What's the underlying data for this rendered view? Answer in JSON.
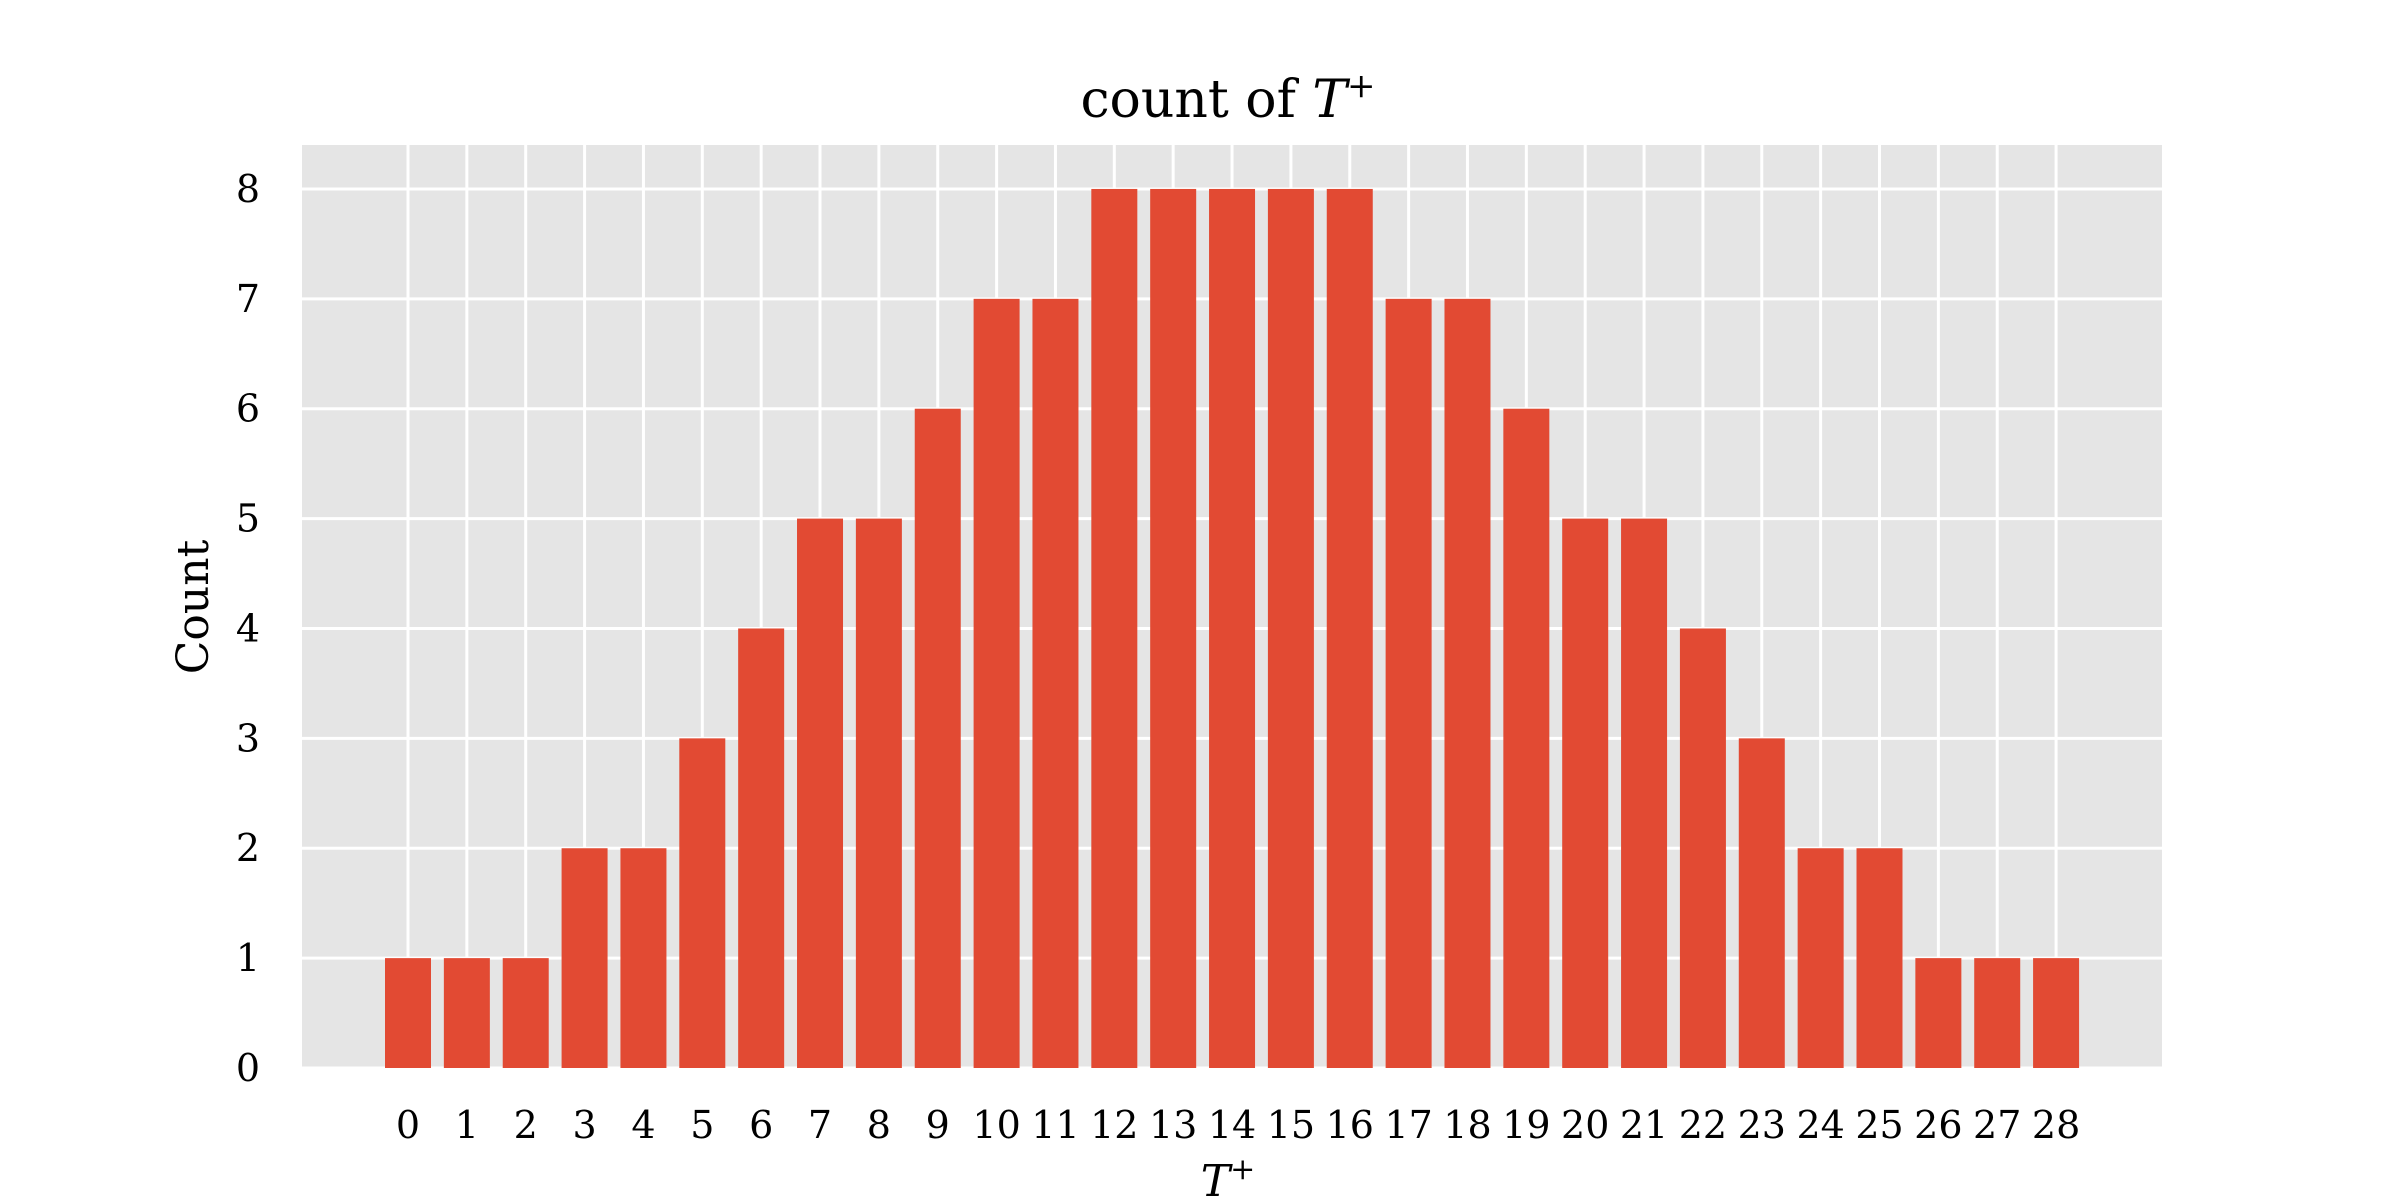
{
  "chart_data": {
    "type": "bar",
    "title": "count of T⁺",
    "title_parts": {
      "prefix": "count of ",
      "symbol": "T",
      "superscript": "+"
    },
    "xlabel": "T⁺",
    "xlabel_parts": {
      "symbol": "T",
      "superscript": "+"
    },
    "ylabel": "Count",
    "categories": [
      "0",
      "1",
      "2",
      "3",
      "4",
      "5",
      "6",
      "7",
      "8",
      "9",
      "10",
      "11",
      "12",
      "13",
      "14",
      "15",
      "16",
      "17",
      "18",
      "19",
      "20",
      "21",
      "22",
      "23",
      "24",
      "25",
      "26",
      "27",
      "28"
    ],
    "values": [
      1,
      1,
      1,
      2,
      2,
      3,
      4,
      5,
      5,
      6,
      7,
      7,
      8,
      8,
      8,
      8,
      8,
      7,
      7,
      6,
      5,
      5,
      4,
      3,
      2,
      2,
      1,
      1,
      1
    ],
    "ylim": [
      0,
      8.4
    ],
    "yticks": [
      "0",
      "1",
      "2",
      "3",
      "4",
      "5",
      "6",
      "7",
      "8"
    ],
    "grid": true,
    "legend": "none",
    "colors": {
      "bar": "#E24A33",
      "plot_background": "#E5E5E5",
      "grid": "#FFFFFF",
      "page_background": "#FFFFFF"
    }
  }
}
